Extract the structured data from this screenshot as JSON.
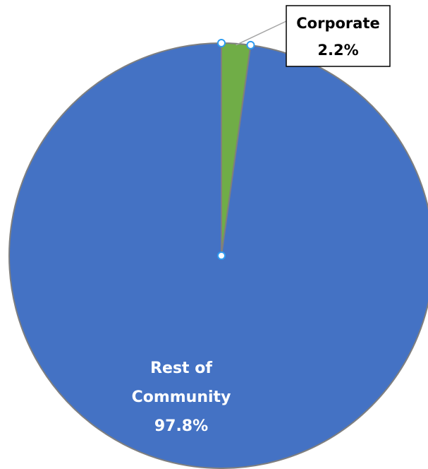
{
  "chart_data": {
    "type": "pie",
    "slices": [
      {
        "label_lines": [
          "Corporate",
          "2.2%"
        ],
        "value": 2.2,
        "color": "#70AD47",
        "label_style": "callout"
      },
      {
        "label_lines": [
          "Rest of",
          "Community",
          "97.8%"
        ],
        "value": 97.8,
        "color": "#4472C4",
        "label_style": "inside"
      }
    ],
    "start_angle_deg": 0,
    "direction": "clockwise",
    "slice_border_color": "#7F7F7F",
    "selection_handle_color": "#2E9BF0",
    "legend": "none"
  }
}
